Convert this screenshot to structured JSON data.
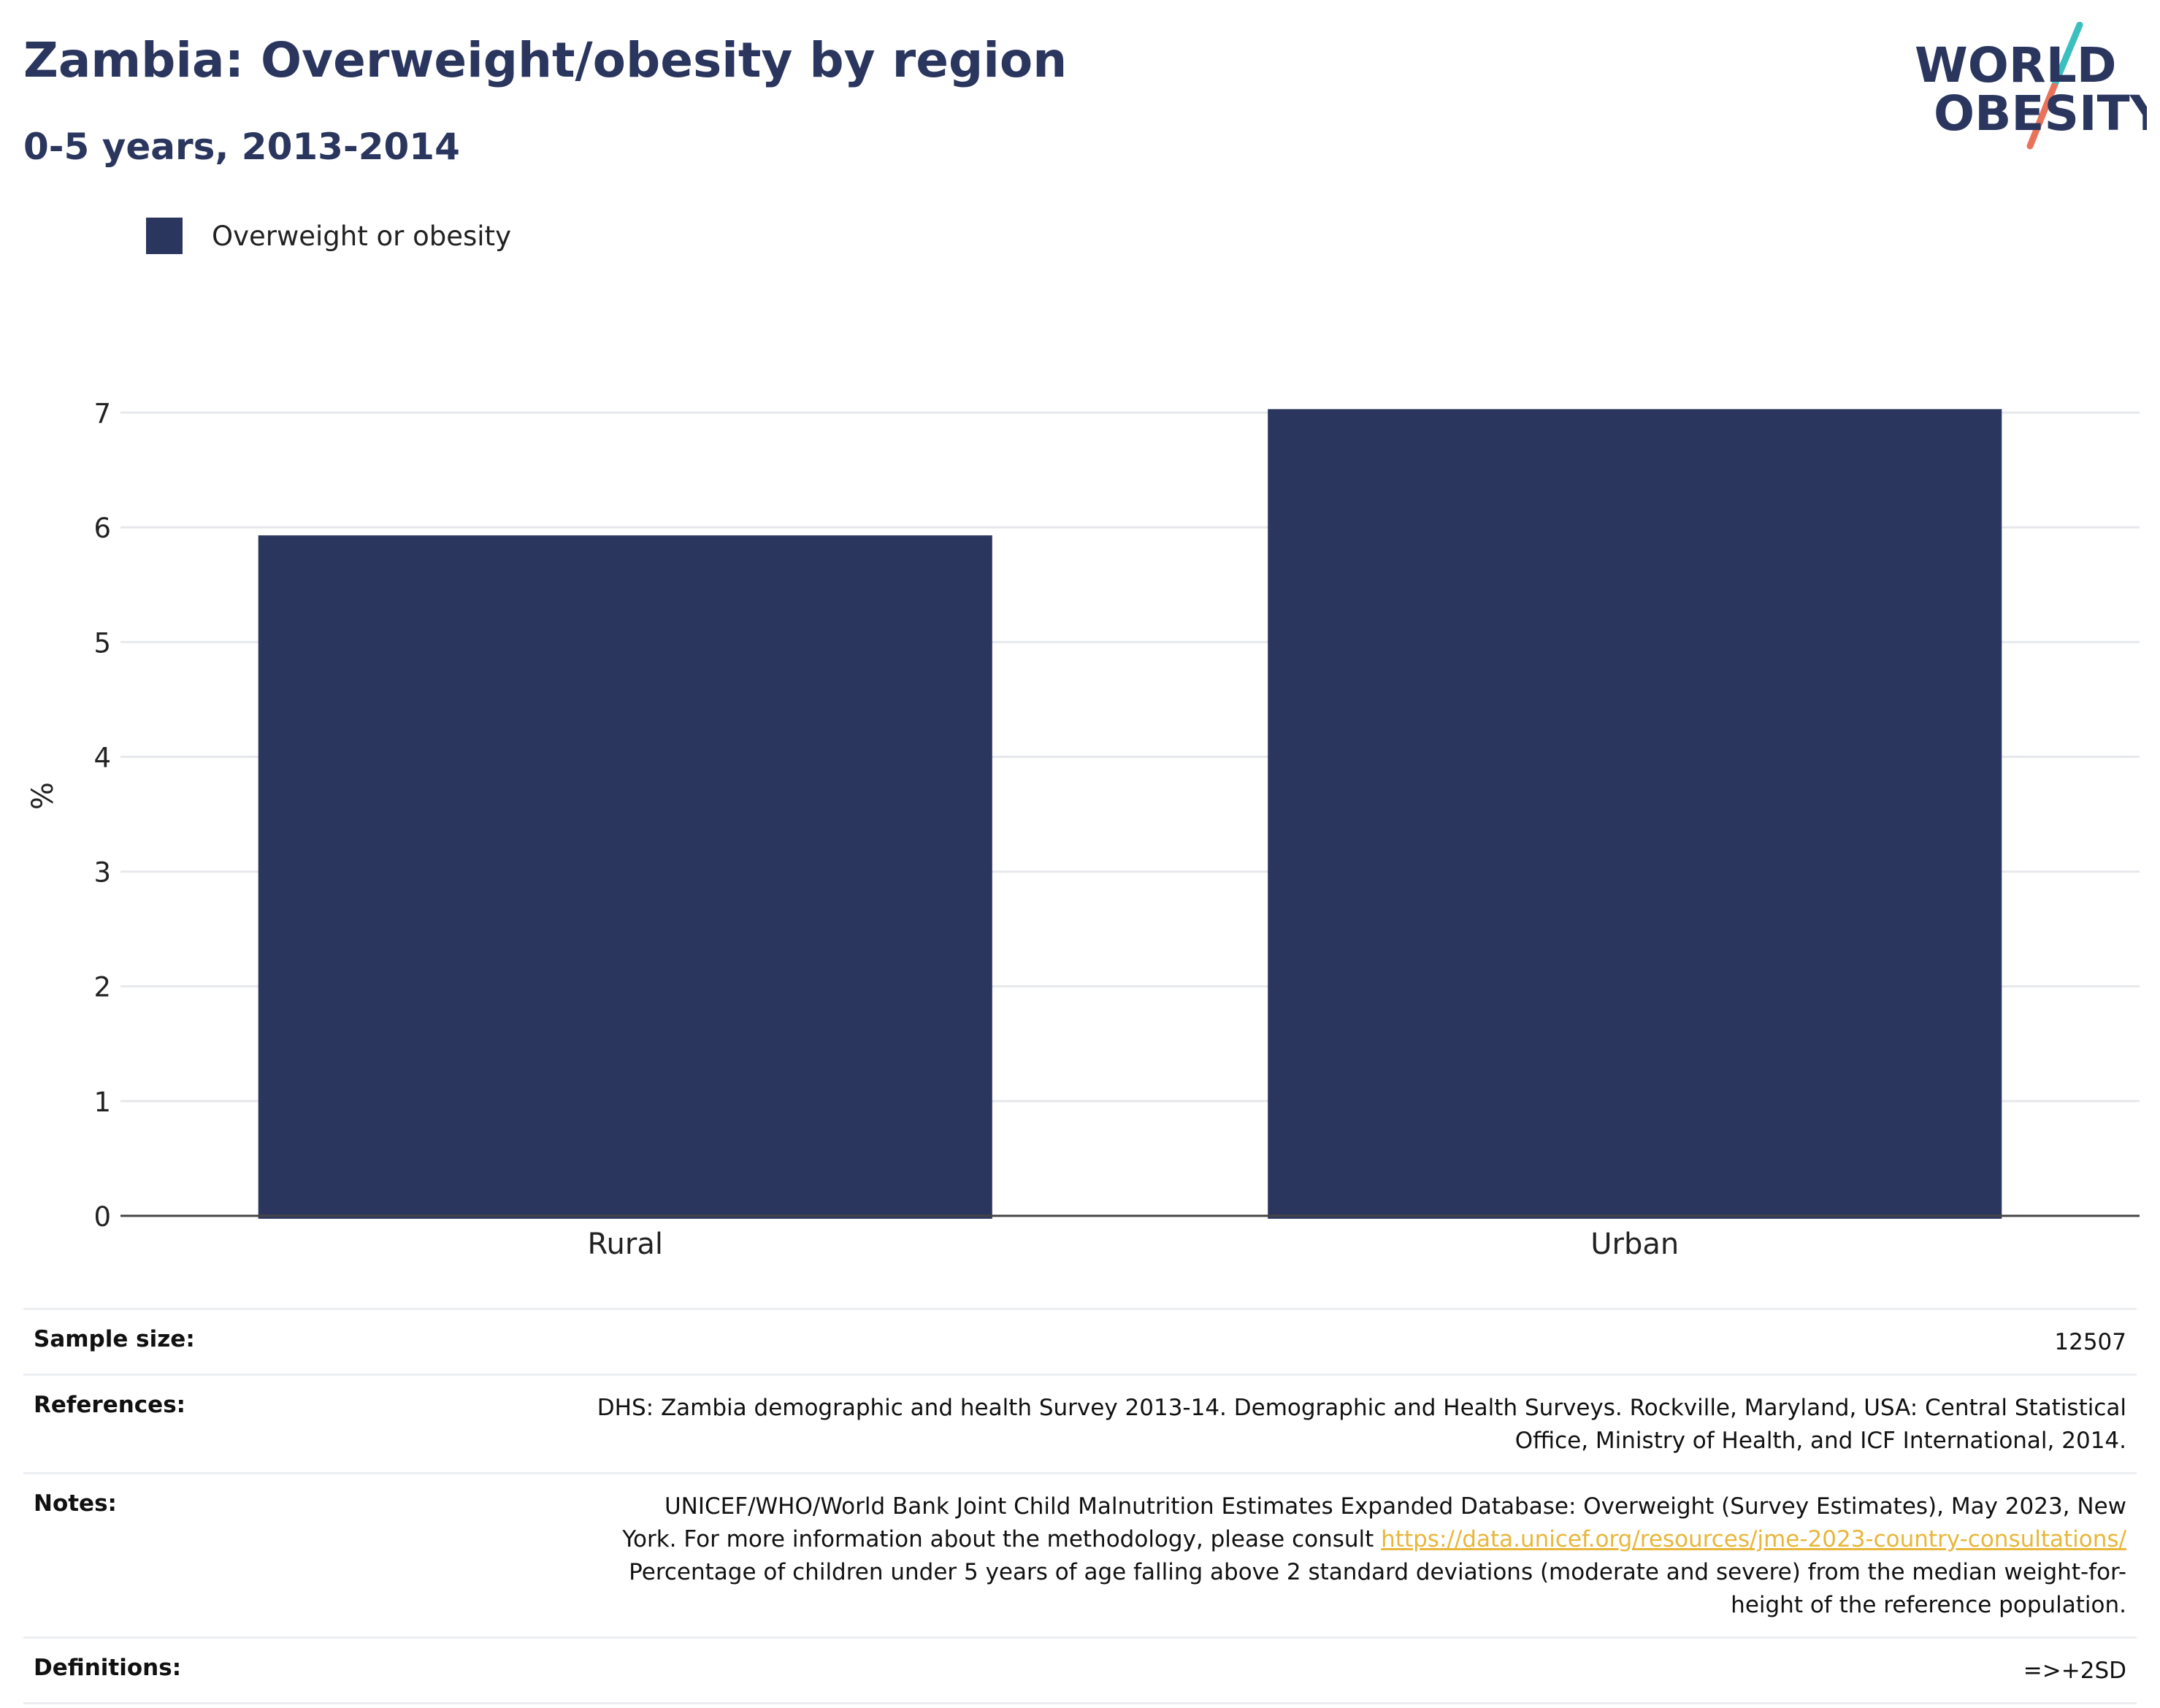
{
  "header": {
    "title": "Zambia: Overweight/obesity by region",
    "subtitle": "0-5 years, 2013-2014"
  },
  "logo": {
    "line1": "WORLD",
    "line2": "OBESITY",
    "colors": {
      "text": "#2b365f",
      "slash_top": "#3bbfbf",
      "slash_bottom": "#e8735a"
    }
  },
  "legend": {
    "items": [
      {
        "label": "Overweight or obesity",
        "color": "#2b365f"
      }
    ]
  },
  "chart_data": {
    "type": "bar",
    "categories": [
      "Rural",
      "Urban"
    ],
    "series": [
      {
        "name": "Overweight or obesity",
        "values": [
          5.93,
          7.03
        ],
        "color": "#2b365f"
      }
    ],
    "ylabel": "%",
    "xlabel": "",
    "ylim": [
      0,
      7.6
    ],
    "yticks": [
      0,
      1,
      2,
      3,
      4,
      5,
      6,
      7
    ],
    "grid": true
  },
  "info": {
    "sample_size": {
      "label": "Sample size:",
      "value": "12507"
    },
    "references": {
      "label": "References:",
      "line1": "DHS: Zambia demographic and health Survey 2013-14. Demographic and Health Surveys. Rockville, Maryland, USA: Central Statistical",
      "line2": "Office, Ministry of Health, and ICF International, 2014."
    },
    "notes": {
      "label": "Notes:",
      "line1": "UNICEF/WHO/World Bank Joint Child Malnutrition Estimates Expanded Database: Overweight (Survey Estimates), May 2023, New",
      "line2_prefix": "York. For more information about the methodology, please consult ",
      "link": "https://data.unicef.org/resources/jme-2023-country-consultations/",
      "line3": "Percentage of children under 5 years of age falling above 2 standard deviations (moderate and severe) from the median weight-for-",
      "line4": "height of the reference population."
    },
    "definitions": {
      "label": "Definitions:",
      "value": "=>+2SD"
    }
  }
}
